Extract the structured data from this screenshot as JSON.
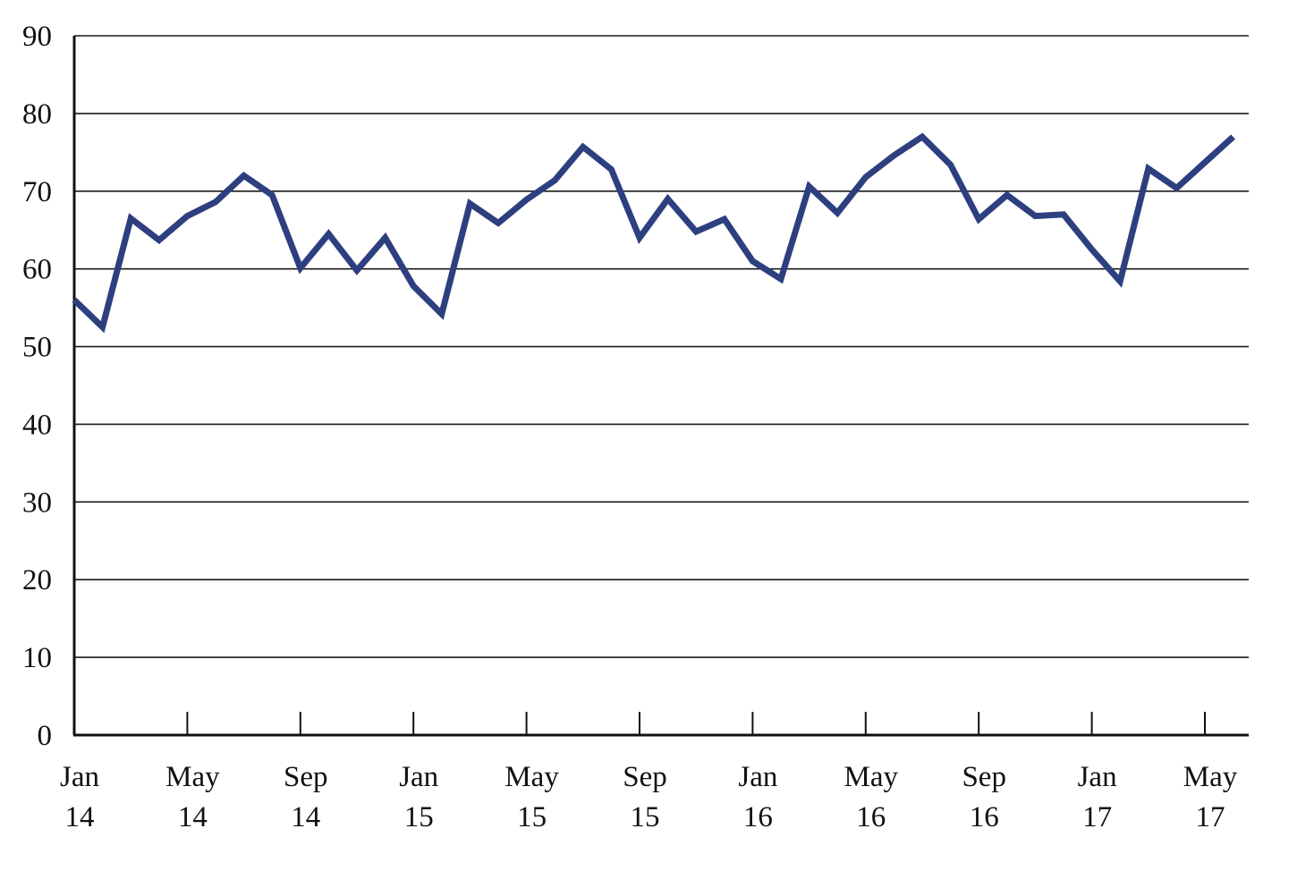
{
  "chart_data": {
    "type": "line",
    "title": "",
    "xlabel": "",
    "ylabel": "",
    "ylim": [
      0,
      90
    ],
    "yticks": [
      0,
      10,
      20,
      30,
      40,
      50,
      60,
      70,
      80,
      90
    ],
    "grid": "horizontal",
    "legend": "none",
    "x_tick_labels": [
      {
        "month": "Jan",
        "year": "14",
        "index": 0
      },
      {
        "month": "May",
        "year": "14",
        "index": 4
      },
      {
        "month": "Sep",
        "year": "14",
        "index": 8
      },
      {
        "month": "Jan",
        "year": "15",
        "index": 12
      },
      {
        "month": "May",
        "year": "15",
        "index": 16
      },
      {
        "month": "Sep",
        "year": "15",
        "index": 20
      },
      {
        "month": "Jan",
        "year": "16",
        "index": 24
      },
      {
        "month": "May",
        "year": "16",
        "index": 28
      },
      {
        "month": "Sep",
        "year": "16",
        "index": 32
      },
      {
        "month": "Jan",
        "year": "17",
        "index": 36
      },
      {
        "month": "May",
        "year": "17",
        "index": 40
      }
    ],
    "x": [
      "2014-01",
      "2014-02",
      "2014-03",
      "2014-04",
      "2014-05",
      "2014-06",
      "2014-07",
      "2014-08",
      "2014-09",
      "2014-10",
      "2014-11",
      "2014-12",
      "2015-01",
      "2015-02",
      "2015-03",
      "2015-04",
      "2015-05",
      "2015-06",
      "2015-07",
      "2015-08",
      "2015-09",
      "2015-10",
      "2015-11",
      "2015-12",
      "2016-01",
      "2016-02",
      "2016-03",
      "2016-04",
      "2016-05",
      "2016-06",
      "2016-07",
      "2016-08",
      "2016-09",
      "2016-10",
      "2016-11",
      "2016-12",
      "2017-01",
      "2017-02",
      "2017-03",
      "2017-04",
      "2017-05",
      "2017-06"
    ],
    "series": [
      {
        "color": "#2e3f7f",
        "values": [
          56.0,
          52.5,
          66.5,
          63.7,
          66.8,
          68.6,
          72.0,
          69.5,
          60.1,
          64.5,
          59.8,
          64.0,
          57.8,
          54.2,
          68.4,
          65.9,
          68.9,
          71.4,
          75.7,
          72.8,
          64.0,
          69.0,
          64.8,
          66.4,
          61.0,
          58.7,
          70.6,
          67.2,
          71.8,
          74.6,
          77.0,
          73.4,
          66.4,
          69.5,
          66.8,
          67.0,
          62.5,
          58.4,
          72.9,
          70.4,
          73.7,
          77.0
        ]
      }
    ]
  }
}
